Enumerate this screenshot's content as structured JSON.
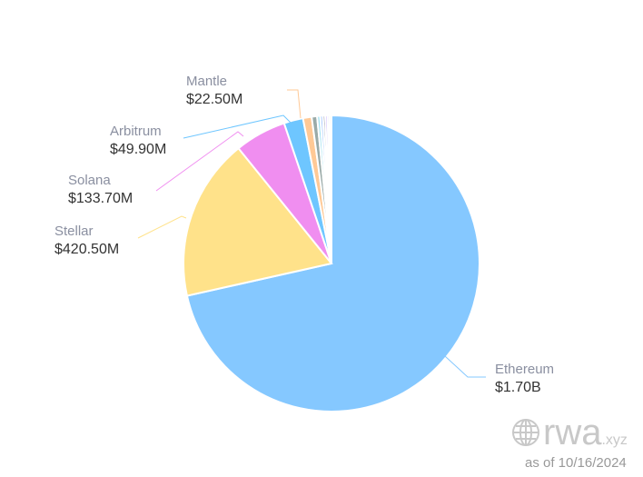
{
  "chart_data": {
    "type": "pie",
    "title": "",
    "slices": [
      {
        "name": "Ethereum",
        "value_label": "$1.70B",
        "value": 1700,
        "color": "#85c8ff"
      },
      {
        "name": "Stellar",
        "value_label": "$420.50M",
        "value": 420.5,
        "color": "#ffe28a"
      },
      {
        "name": "Solana",
        "value_label": "$133.70M",
        "value": 133.7,
        "color": "#f08ef0"
      },
      {
        "name": "Arbitrum",
        "value_label": "$49.90M",
        "value": 49.9,
        "color": "#6ec6ff"
      },
      {
        "name": "Mantle",
        "value_label": "$22.50M",
        "value": 22.5,
        "color": "#ffc996"
      },
      {
        "name": "",
        "value": 14,
        "color": "#9aaaa8"
      },
      {
        "name": "",
        "value": 8,
        "color": "#9ee0f0"
      },
      {
        "name": "",
        "value": 7,
        "color": "#a5c8ff"
      },
      {
        "name": "",
        "value": 6,
        "color": "#8a8aa0"
      },
      {
        "name": "",
        "value": 6,
        "color": "#c0a8ff"
      },
      {
        "name": "",
        "value": 5,
        "color": "#b0b0ff"
      },
      {
        "name": "",
        "value": 5,
        "color": "#f5f0b0"
      }
    ]
  },
  "watermark": {
    "brand": "rwa",
    "tld": ".xyz",
    "as_of": "as of 10/16/2024"
  }
}
